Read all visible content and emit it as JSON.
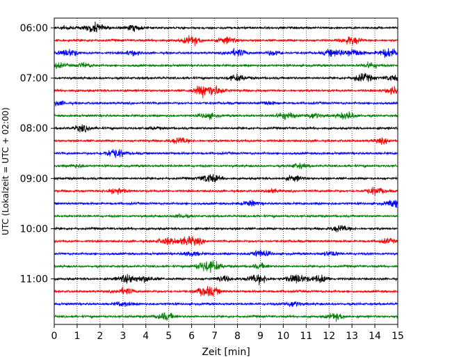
{
  "chart_data": {
    "type": "line",
    "xlabel": "Zeit  [min]",
    "ylabel": "UTC (Lokalzeit = UTC + 02:00)",
    "xlim": [
      0,
      15
    ],
    "x_ticks": [
      0,
      1,
      2,
      3,
      4,
      5,
      6,
      7,
      8,
      9,
      10,
      11,
      12,
      13,
      14,
      15
    ],
    "y_tick_labels": [
      "06:00",
      "07:00",
      "08:00",
      "09:00",
      "10:00",
      "11:00"
    ],
    "vertical_grid": "dotted",
    "traces_per_hour": 4,
    "trace_colors": [
      "#000000",
      "#ff0000",
      "#0000ff",
      "#008000"
    ],
    "traces": [
      {
        "start": "06:00",
        "events": [
          [
            1.75,
            1.0
          ],
          [
            3.45,
            0.6
          ],
          [
            0.5,
            0.3
          ]
        ]
      },
      {
        "start": "06:15",
        "events": [
          [
            6.0,
            0.9
          ],
          [
            7.55,
            0.7
          ],
          [
            12.95,
            0.9
          ]
        ]
      },
      {
        "start": "06:30",
        "events": [
          [
            0.65,
            0.8
          ],
          [
            3.4,
            0.5
          ],
          [
            8.0,
            0.8
          ],
          [
            9.6,
            0.5
          ],
          [
            12.2,
            0.8
          ],
          [
            13.05,
            0.9
          ],
          [
            14.6,
            1.0
          ]
        ]
      },
      {
        "start": "06:45",
        "events": [
          [
            0.1,
            0.6
          ],
          [
            1.3,
            0.5
          ],
          [
            13.8,
            0.6
          ]
        ]
      },
      {
        "start": "07:00",
        "events": [
          [
            8.0,
            0.7
          ],
          [
            13.5,
            0.9
          ],
          [
            14.8,
            0.6
          ]
        ]
      },
      {
        "start": "07:15",
        "events": [
          [
            6.5,
            1.0
          ],
          [
            7.0,
            0.9
          ],
          [
            14.95,
            0.9
          ]
        ]
      },
      {
        "start": "07:30",
        "events": [
          [
            0.15,
            0.5
          ],
          [
            9.3,
            0.4
          ]
        ]
      },
      {
        "start": "07:45",
        "events": [
          [
            6.7,
            0.6
          ],
          [
            10.1,
            0.8
          ],
          [
            11.3,
            0.6
          ],
          [
            12.8,
            0.8
          ]
        ]
      },
      {
        "start": "08:00",
        "events": [
          [
            1.25,
            0.7
          ],
          [
            4.4,
            0.3
          ]
        ]
      },
      {
        "start": "08:15",
        "events": [
          [
            5.5,
            0.7
          ],
          [
            14.3,
            0.5
          ]
        ]
      },
      {
        "start": "08:30",
        "events": [
          [
            2.65,
            1.0
          ]
        ]
      },
      {
        "start": "08:45",
        "events": [
          [
            1.0,
            0.4
          ],
          [
            10.7,
            0.5
          ]
        ]
      },
      {
        "start": "09:00",
        "events": [
          [
            6.8,
            1.0
          ],
          [
            10.5,
            0.6
          ]
        ]
      },
      {
        "start": "09:15",
        "events": [
          [
            2.7,
            0.7
          ],
          [
            9.5,
            0.4
          ],
          [
            14.0,
            0.8
          ]
        ]
      },
      {
        "start": "09:30",
        "events": [
          [
            8.6,
            0.6
          ],
          [
            14.9,
            0.8
          ]
        ]
      },
      {
        "start": "09:45",
        "events": [
          [
            5.5,
            0.4
          ]
        ]
      },
      {
        "start": "10:00",
        "events": [
          [
            12.5,
            0.7
          ]
        ]
      },
      {
        "start": "10:15",
        "events": [
          [
            4.9,
            0.7
          ],
          [
            5.6,
            0.6
          ],
          [
            6.1,
            0.8
          ],
          [
            14.55,
            0.5
          ]
        ]
      },
      {
        "start": "10:30",
        "events": [
          [
            6.0,
            0.5
          ],
          [
            9.0,
            0.8
          ],
          [
            12.1,
            0.5
          ]
        ]
      },
      {
        "start": "10:45",
        "events": [
          [
            6.5,
            0.8
          ],
          [
            6.95,
            0.9
          ],
          [
            9.0,
            0.5
          ]
        ]
      },
      {
        "start": "11:00",
        "events": [
          [
            3.2,
            0.9
          ],
          [
            4.0,
            0.7
          ],
          [
            7.4,
            0.6
          ],
          [
            8.9,
            1.0
          ],
          [
            10.6,
            1.0
          ],
          [
            11.6,
            0.8
          ]
        ]
      },
      {
        "start": "11:15",
        "events": [
          [
            3.1,
            0.7
          ],
          [
            6.5,
            0.7
          ],
          [
            6.9,
            0.7
          ]
        ]
      },
      {
        "start": "11:30",
        "events": [
          [
            3.0,
            0.5
          ],
          [
            10.4,
            0.6
          ]
        ]
      },
      {
        "start": "11:45",
        "events": [
          [
            4.85,
            0.8
          ],
          [
            12.3,
            0.7
          ]
        ]
      }
    ]
  }
}
